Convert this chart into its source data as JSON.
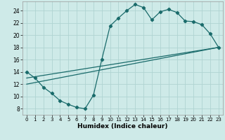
{
  "xlabel": "Humidex (Indice chaleur)",
  "background_color": "#ceeae8",
  "grid_color": "#afd4d2",
  "line_color": "#1a6b6b",
  "xlim": [
    -0.5,
    23.5
  ],
  "ylim": [
    7,
    25.5
  ],
  "xticks": [
    0,
    1,
    2,
    3,
    4,
    5,
    6,
    7,
    8,
    9,
    10,
    11,
    12,
    13,
    14,
    15,
    16,
    17,
    18,
    19,
    20,
    21,
    22,
    23
  ],
  "yticks": [
    8,
    10,
    12,
    14,
    16,
    18,
    20,
    22,
    24
  ],
  "curve_x": [
    0,
    1,
    2,
    3,
    4,
    5,
    6,
    7,
    8,
    9,
    10,
    11,
    12,
    13,
    14,
    15,
    16,
    17,
    18,
    19,
    20,
    21,
    22,
    23
  ],
  "curve_y": [
    14.0,
    13.0,
    11.5,
    10.5,
    9.3,
    8.7,
    8.2,
    8.0,
    10.2,
    16.0,
    21.5,
    22.8,
    24.0,
    25.0,
    24.5,
    22.5,
    23.8,
    24.2,
    23.7,
    22.3,
    22.2,
    21.7,
    20.2,
    18.0
  ],
  "line1_x": [
    0,
    23
  ],
  "line1_y": [
    12.0,
    18.0
  ],
  "line2_x": [
    0,
    23
  ],
  "line2_y": [
    13.0,
    18.0
  ]
}
